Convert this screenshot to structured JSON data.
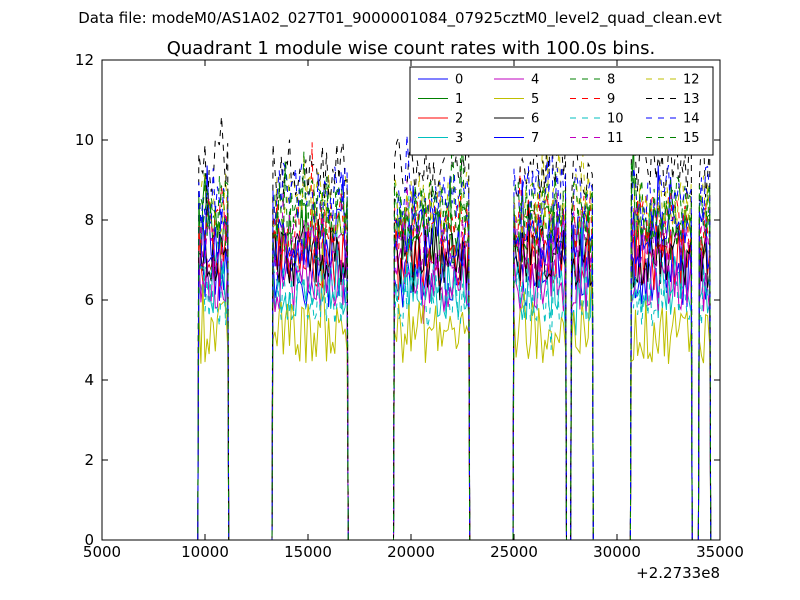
{
  "suptitle": "Data file: modeM0/AS1A02_027T01_9000001084_07925cztM0_level2_quad_clean.evt",
  "chart_data": {
    "type": "line",
    "title": "Quadrant 1 module wise count rates with 100.0s bins.",
    "xlabel": "",
    "ylabel": "",
    "xlim": [
      5000,
      35000
    ],
    "ylim": [
      0,
      12
    ],
    "x_offset_label": "+2.2733e8",
    "xticks": [
      5000,
      10000,
      15000,
      20000,
      25000,
      30000,
      35000
    ],
    "xtick_labels": [
      "5000",
      "10000",
      "15000",
      "20000",
      "25000",
      "30000",
      "35000"
    ],
    "yticks": [
      0,
      2,
      4,
      6,
      8,
      10,
      12
    ],
    "ytick_labels": [
      "0",
      "2",
      "4",
      "6",
      "8",
      "10",
      "12"
    ],
    "legend_position": "top-right",
    "bin_size_s": 100,
    "segments": [
      {
        "start": 9700,
        "end": 11100
      },
      {
        "start": 13300,
        "end": 16900
      },
      {
        "start": 19200,
        "end": 22800
      },
      {
        "start": 25000,
        "end": 27500
      },
      {
        "start": 27800,
        "end": 28800
      },
      {
        "start": 30700,
        "end": 33600
      },
      {
        "start": 34000,
        "end": 34500
      }
    ],
    "series": [
      {
        "name": "0",
        "mean": 6.6,
        "color": "#0000ff",
        "dash": "solid"
      },
      {
        "name": "1",
        "mean": 7.7,
        "color": "#008000",
        "dash": "solid"
      },
      {
        "name": "2",
        "mean": 7.1,
        "color": "#ff0000",
        "dash": "solid"
      },
      {
        "name": "3",
        "mean": 6.3,
        "color": "#00bfbf",
        "dash": "solid"
      },
      {
        "name": "4",
        "mean": 6.5,
        "color": "#bf00bf",
        "dash": "solid"
      },
      {
        "name": "5",
        "mean": 5.2,
        "color": "#bfbf00",
        "dash": "solid"
      },
      {
        "name": "6",
        "mean": 7.1,
        "color": "#000000",
        "dash": "solid"
      },
      {
        "name": "7",
        "mean": 7.5,
        "color": "#0000ff",
        "dash": "solid"
      },
      {
        "name": "8",
        "mean": 8.1,
        "color": "#008000",
        "dash": "dashed"
      },
      {
        "name": "9",
        "mean": 7.9,
        "color": "#ff0000",
        "dash": "dashed"
      },
      {
        "name": "10",
        "mean": 6.1,
        "color": "#00bfbf",
        "dash": "dashed"
      },
      {
        "name": "11",
        "mean": 7.4,
        "color": "#bf00bf",
        "dash": "dashed"
      },
      {
        "name": "12",
        "mean": 8.4,
        "color": "#bfbf00",
        "dash": "dashed"
      },
      {
        "name": "13",
        "mean": 9.3,
        "color": "#000000",
        "dash": "dashed"
      },
      {
        "name": "14",
        "mean": 8.6,
        "color": "#0000ff",
        "dash": "dashed"
      },
      {
        "name": "15",
        "mean": 8.3,
        "color": "#008000",
        "dash": "dashed"
      }
    ]
  }
}
